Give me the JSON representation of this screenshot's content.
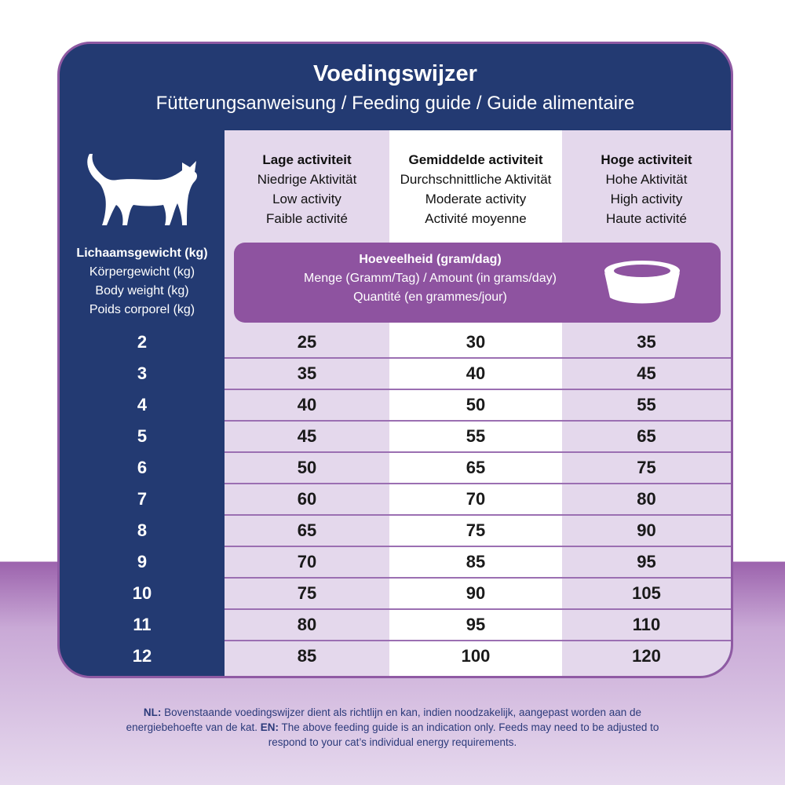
{
  "header": {
    "title": "Voedingswijzer",
    "subtitle": "Fütterungsanweisung / Feeding guide / Guide alimentaire"
  },
  "table": {
    "weight_header": [
      "Lichaamsgewicht (kg)",
      "Körpergewicht (kg)",
      "Body weight (kg)",
      "Poids corporel (kg)"
    ],
    "columns": [
      [
        "Lage activiteit",
        "Niedrige Aktivität",
        "Low activity",
        "Faible activité"
      ],
      [
        "Gemiddelde activiteit",
        "Durchschnittliche Aktivität",
        "Moderate activity",
        "Activité moyenne"
      ],
      [
        "Hoge activiteit",
        "Hohe Aktivität",
        "High activity",
        "Haute activité"
      ]
    ],
    "amount_header": [
      "Hoeveelheid (gram/dag)",
      "Menge (Gramm/Tag) / Amount (in grams/day)",
      "Quantité (en grammes/jour)"
    ],
    "rows": [
      [
        2,
        25,
        30,
        35
      ],
      [
        3,
        35,
        40,
        45
      ],
      [
        4,
        40,
        50,
        55
      ],
      [
        5,
        45,
        55,
        65
      ],
      [
        6,
        50,
        65,
        75
      ],
      [
        7,
        60,
        70,
        80
      ],
      [
        8,
        65,
        75,
        90
      ],
      [
        9,
        70,
        85,
        95
      ],
      [
        10,
        75,
        90,
        105
      ],
      [
        11,
        80,
        95,
        110
      ],
      [
        12,
        85,
        100,
        120
      ]
    ]
  },
  "footnote": {
    "nl_label": "NL:",
    "nl_text": "Bovenstaande voedingswijzer dient als richtlijn en kan, indien noodzakelijk, aangepast worden aan de energiebehoefte van de kat.",
    "en_label": "EN:",
    "en_text": "The above feeding guide is an indication only. Feeds may need to be adjusted to respond to your cat’s individual energy requirements."
  }
}
